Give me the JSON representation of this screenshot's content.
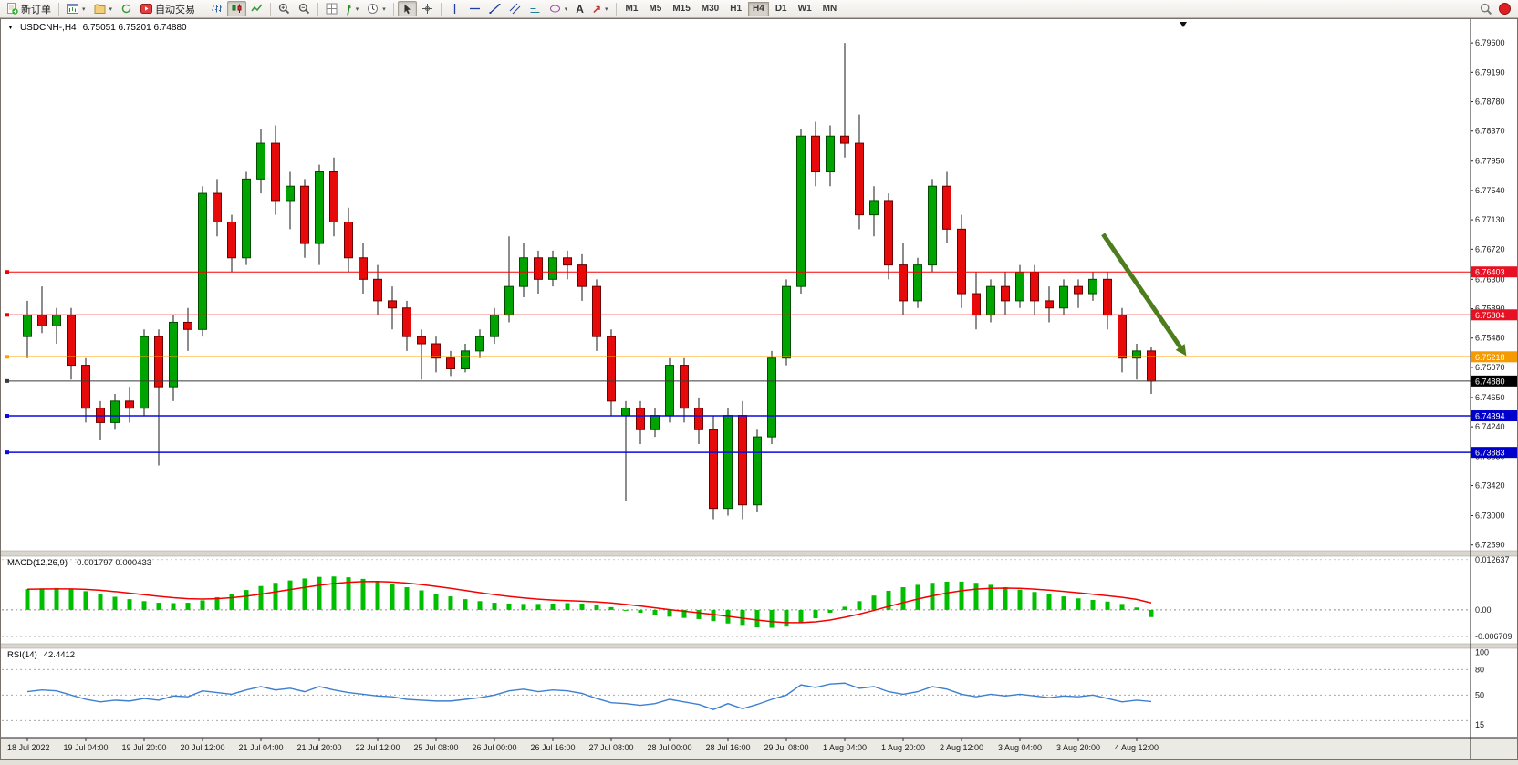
{
  "icons": {
    "caret": "▾",
    "collapse": "▼",
    "function": "ƒ",
    "text_tool": "A",
    "arrow_tool": "↗"
  },
  "toolbar": {
    "new_order": "新订单",
    "auto_trading": "自动交易",
    "timeframes": [
      "M1",
      "M5",
      "M15",
      "M30",
      "H1",
      "H4",
      "D1",
      "W1",
      "MN"
    ],
    "active_timeframe": "H4"
  },
  "chart": {
    "title": "USDCNH-,H4",
    "quotes": "6.75051 6.75201 6.74880",
    "macd_label": "MACD(12,26,9)",
    "macd_values": "-0.001797 0.000433",
    "rsi_label": "RSI(14)",
    "rsi_value": "42.4412"
  },
  "chart_data": {
    "type": "candlestick",
    "symbol": "USDCNH",
    "timeframe": "H4",
    "price_range": [
      6.7251,
      6.7992
    ],
    "label_step": 4,
    "colors": {
      "up": "#00A400",
      "down": "#E60A0A"
    },
    "y_axis_labels": [
      "6.79600",
      "6.79190",
      "6.78780",
      "6.78370",
      "6.77950",
      "6.77540",
      "6.77130",
      "6.76720",
      "6.76300",
      "6.75890",
      "6.75480",
      "6.75070",
      "6.74650",
      "6.74240",
      "6.73830",
      "6.73420",
      "6.73000",
      "6.72590"
    ],
    "x_labels": [
      "18 Jul 2022",
      "19 Jul 04:00",
      "19 Jul 20:00",
      "20 Jul 12:00",
      "21 Jul 04:00",
      "21 Jul 20:00",
      "22 Jul 12:00",
      "25 Jul 08:00",
      "26 Jul 00:00",
      "26 Jul 16:00",
      "27 Jul 08:00",
      "28 Jul 00:00",
      "28 Jul 16:00",
      "29 Jul 08:00",
      "1 Aug 04:00",
      "1 Aug 20:00",
      "2 Aug 12:00",
      "3 Aug 04:00",
      "3 Aug 20:00",
      "4 Aug 12:00"
    ],
    "candles": [
      [
        6.755,
        6.76,
        6.752,
        6.758
      ],
      [
        6.758,
        6.762,
        6.7555,
        6.7565
      ],
      [
        6.7565,
        6.759,
        6.754,
        6.758
      ],
      [
        6.758,
        6.759,
        6.749,
        6.751
      ],
      [
        6.751,
        6.752,
        6.743,
        6.745
      ],
      [
        6.745,
        6.746,
        6.7405,
        6.743
      ],
      [
        6.743,
        6.747,
        6.742,
        6.746
      ],
      [
        6.746,
        6.748,
        6.743,
        6.745
      ],
      [
        6.745,
        6.756,
        6.744,
        6.755
      ],
      [
        6.755,
        6.756,
        6.737,
        6.748
      ],
      [
        6.748,
        6.758,
        6.746,
        6.757
      ],
      [
        6.757,
        6.759,
        6.753,
        6.756
      ],
      [
        6.756,
        6.776,
        6.755,
        6.775
      ],
      [
        6.775,
        6.777,
        6.769,
        6.771
      ],
      [
        6.771,
        6.772,
        6.764,
        6.766
      ],
      [
        6.766,
        6.778,
        6.765,
        6.777
      ],
      [
        6.777,
        6.784,
        6.775,
        6.782
      ],
      [
        6.782,
        6.7845,
        6.772,
        6.774
      ],
      [
        6.774,
        6.778,
        6.77,
        6.776
      ],
      [
        6.776,
        6.777,
        6.766,
        6.768
      ],
      [
        6.768,
        6.779,
        6.765,
        6.778
      ],
      [
        6.778,
        6.78,
        6.769,
        6.771
      ],
      [
        6.771,
        6.773,
        6.764,
        6.766
      ],
      [
        6.766,
        6.768,
        6.761,
        6.763
      ],
      [
        6.763,
        6.765,
        6.758,
        6.76
      ],
      [
        6.76,
        6.762,
        6.756,
        6.759
      ],
      [
        6.759,
        6.76,
        6.753,
        6.755
      ],
      [
        6.755,
        6.756,
        6.749,
        6.754
      ],
      [
        6.754,
        6.755,
        6.75,
        6.752
      ],
      [
        6.752,
        6.753,
        6.7495,
        6.7505
      ],
      [
        6.7505,
        6.754,
        6.75,
        6.753
      ],
      [
        6.753,
        6.756,
        6.752,
        6.755
      ],
      [
        6.755,
        6.759,
        6.754,
        6.758
      ],
      [
        6.758,
        6.769,
        6.757,
        6.762
      ],
      [
        6.762,
        6.768,
        6.7605,
        6.766
      ],
      [
        6.766,
        6.767,
        6.761,
        6.763
      ],
      [
        6.763,
        6.767,
        6.762,
        6.766
      ],
      [
        6.766,
        6.767,
        6.763,
        6.765
      ],
      [
        6.765,
        6.7665,
        6.76,
        6.762
      ],
      [
        6.762,
        6.763,
        6.753,
        6.755
      ],
      [
        6.755,
        6.756,
        6.744,
        6.746
      ],
      [
        6.744,
        6.746,
        6.732,
        6.745
      ],
      [
        6.745,
        6.746,
        6.74,
        6.742
      ],
      [
        6.742,
        6.745,
        6.741,
        6.744
      ],
      [
        6.744,
        6.752,
        6.743,
        6.751
      ],
      [
        6.751,
        6.752,
        6.743,
        6.745
      ],
      [
        6.745,
        6.7465,
        6.74,
        6.742
      ],
      [
        6.742,
        6.744,
        6.7295,
        6.731
      ],
      [
        6.731,
        6.745,
        6.73,
        6.744
      ],
      [
        6.744,
        6.746,
        6.7295,
        6.7315
      ],
      [
        6.7315,
        6.742,
        6.7305,
        6.741
      ],
      [
        6.741,
        6.753,
        6.74,
        6.752
      ],
      [
        6.752,
        6.763,
        6.751,
        6.762
      ],
      [
        6.762,
        6.784,
        6.761,
        6.783
      ],
      [
        6.783,
        6.785,
        6.776,
        6.778
      ],
      [
        6.778,
        6.7845,
        6.776,
        6.783
      ],
      [
        6.783,
        6.796,
        6.78,
        6.782
      ],
      [
        6.782,
        6.786,
        6.77,
        6.772
      ],
      [
        6.772,
        6.776,
        6.769,
        6.774
      ],
      [
        6.774,
        6.775,
        6.763,
        6.765
      ],
      [
        6.765,
        6.768,
        6.758,
        6.76
      ],
      [
        6.76,
        6.766,
        6.759,
        6.765
      ],
      [
        6.765,
        6.777,
        6.764,
        6.776
      ],
      [
        6.776,
        6.778,
        6.768,
        6.77
      ],
      [
        6.77,
        6.772,
        6.759,
        6.761
      ],
      [
        6.761,
        6.764,
        6.756,
        6.758
      ],
      [
        6.758,
        6.763,
        6.757,
        6.762
      ],
      [
        6.762,
        6.764,
        6.758,
        6.76
      ],
      [
        6.76,
        6.765,
        6.759,
        6.764
      ],
      [
        6.764,
        6.765,
        6.758,
        6.76
      ],
      [
        6.76,
        6.762,
        6.757,
        6.759
      ],
      [
        6.759,
        6.763,
        6.758,
        6.762
      ],
      [
        6.762,
        6.763,
        6.759,
        6.761
      ],
      [
        6.761,
        6.764,
        6.76,
        6.763
      ],
      [
        6.763,
        6.764,
        6.756,
        6.758
      ],
      [
        6.758,
        6.759,
        6.75,
        6.752
      ],
      [
        6.752,
        6.754,
        6.749,
        6.753
      ],
      [
        6.753,
        6.7535,
        6.747,
        6.7488
      ]
    ],
    "hlines": [
      {
        "price": 6.76403,
        "label": "6.76403",
        "color": "#F50000",
        "tag": "#E81123",
        "width": 1
      },
      {
        "price": 6.75804,
        "label": "6.75804",
        "color": "#F50000",
        "tag": "#E81123",
        "width": 1
      },
      {
        "price": 6.75218,
        "label": "6.75218",
        "color": "#FFA000",
        "tag": "#F59A00",
        "width": 1.5
      },
      {
        "price": 6.7488,
        "label": "6.74880",
        "color": "#3a3a3a",
        "tag": "#000000",
        "width": 1,
        "role": "current-price"
      },
      {
        "price": 6.74394,
        "label": "6.74394",
        "color": "#0B0BE0",
        "tag": "#0000CC",
        "width": 1.5
      },
      {
        "price": 6.73883,
        "label": "6.73883",
        "color": "#0B0BE0",
        "tag": "#0000CC",
        "width": 1.5
      }
    ],
    "arrow": {
      "i1": 73.7,
      "p1": 6.7693,
      "i2": 79.4,
      "p2": 6.7523,
      "color": "#4E7D1E"
    },
    "macd": {
      "bar_color": "#00BE00",
      "signal_color": "#F50000",
      "axis_range": [
        -0.0085,
        0.0135
      ],
      "axis_labels": [
        {
          "v": 0.012637,
          "t": "0.012637"
        },
        {
          "v": 0,
          "t": "0.00"
        },
        {
          "v": -0.006709,
          "t": "-0.006709"
        }
      ],
      "values": [
        0.0052,
        0.0054,
        0.0055,
        0.0052,
        0.0047,
        0.004,
        0.0033,
        0.0027,
        0.0022,
        0.0018,
        0.0017,
        0.0018,
        0.0024,
        0.0032,
        0.004,
        0.005,
        0.006,
        0.0068,
        0.0074,
        0.0079,
        0.0083,
        0.0084,
        0.0082,
        0.0078,
        0.0072,
        0.0065,
        0.0057,
        0.0049,
        0.0041,
        0.0034,
        0.0027,
        0.0022,
        0.0018,
        0.0016,
        0.0015,
        0.0015,
        0.0016,
        0.0017,
        0.0016,
        0.0013,
        0.0007,
        0.0,
        -0.0007,
        -0.0013,
        -0.0017,
        -0.002,
        -0.0023,
        -0.0028,
        -0.0034,
        -0.004,
        -0.0044,
        -0.0045,
        -0.0042,
        -0.0033,
        -0.0021,
        -0.0007,
        0.0008,
        0.0022,
        0.0036,
        0.0048,
        0.0057,
        0.0063,
        0.0068,
        0.0071,
        0.0071,
        0.0068,
        0.0063,
        0.0057,
        0.0051,
        0.0045,
        0.0039,
        0.0034,
        0.0029,
        0.0025,
        0.0021,
        0.0015,
        0.0006,
        -0.0018
      ]
    },
    "rsi": {
      "line_color": "#3E7FD1",
      "axis_range": [
        0,
        105
      ],
      "levels": [
        80,
        50,
        20
      ],
      "axis_labels": [
        {
          "v": 100,
          "t": "100"
        },
        {
          "v": 80,
          "t": "80"
        },
        {
          "v": 50,
          "t": "50"
        },
        {
          "v": 15,
          "t": "15"
        }
      ],
      "values": [
        54,
        56,
        55,
        50,
        45,
        42,
        44,
        43,
        46,
        44,
        49,
        48,
        55,
        53,
        51,
        56,
        60,
        56,
        58,
        54,
        60,
        56,
        53,
        51,
        49,
        48,
        45,
        44,
        43,
        43,
        45,
        47,
        50,
        55,
        57,
        54,
        56,
        55,
        52,
        46,
        41,
        40,
        38,
        40,
        45,
        42,
        39,
        33,
        40,
        34,
        39,
        45,
        50,
        62,
        59,
        63,
        64,
        58,
        60,
        54,
        51,
        54,
        60,
        57,
        51,
        48,
        51,
        49,
        51,
        49,
        47,
        49,
        48,
        50,
        46,
        42,
        44,
        42.44
      ]
    }
  }
}
